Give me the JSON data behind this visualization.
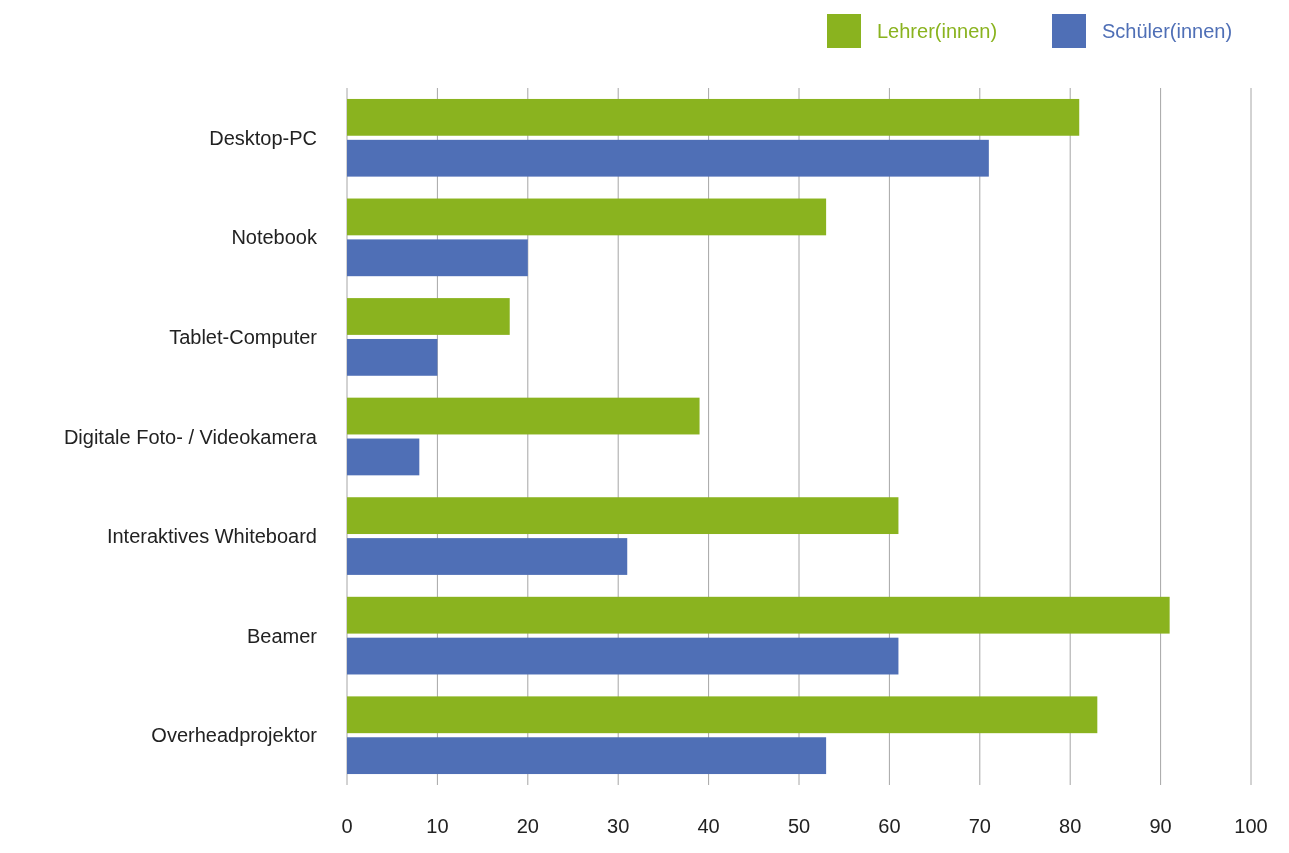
{
  "chart_data": {
    "type": "bar",
    "orientation": "horizontal",
    "categories": [
      "Desktop-PC",
      "Notebook",
      "Tablet-Computer",
      "Digitale Foto- / Videokamera",
      "Interaktives Whiteboard",
      "Beamer",
      "Overheadprojektor"
    ],
    "series": [
      {
        "name": "Lehrer(innen)",
        "color": "#8ab31f",
        "values": [
          81,
          53,
          18,
          39,
          61,
          91,
          83
        ]
      },
      {
        "name": "Schüler(innen)",
        "color": "#4f6fb6",
        "values": [
          71,
          20,
          10,
          8,
          31,
          61,
          53
        ]
      }
    ],
    "xlim": [
      0,
      100
    ],
    "xticks": [
      0,
      10,
      20,
      30,
      40,
      50,
      60,
      70,
      80,
      90,
      100
    ],
    "grid": "x",
    "legend": "top right"
  }
}
